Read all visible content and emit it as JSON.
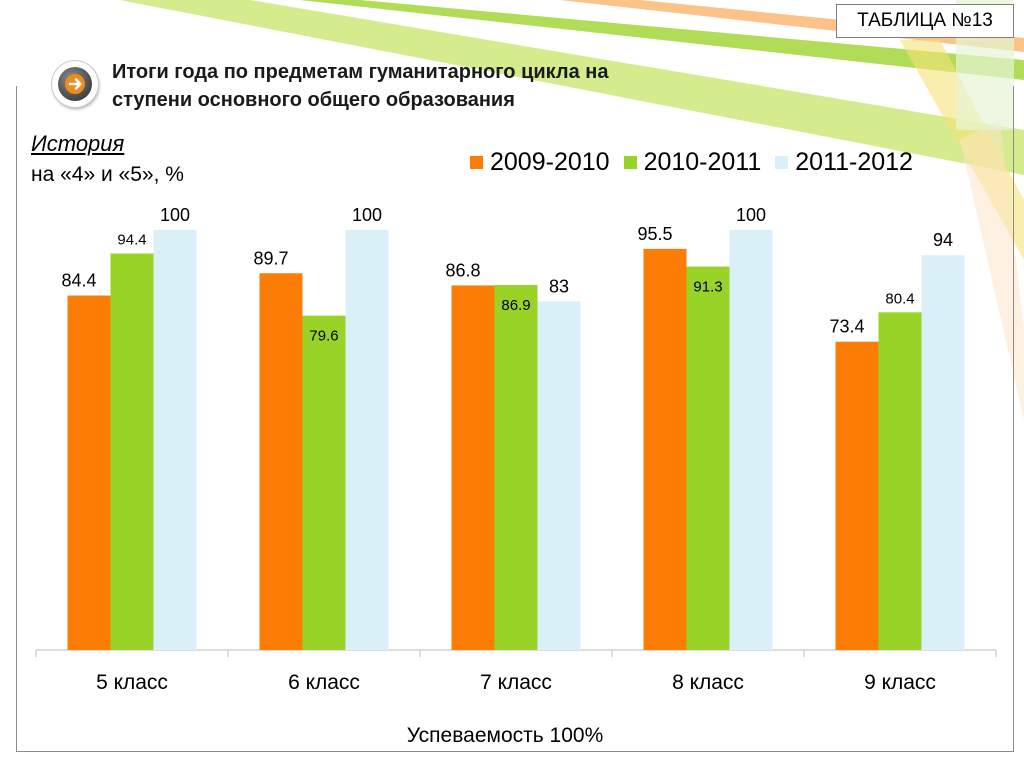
{
  "badge": "ТАБЛИЦА №13",
  "title": {
    "line1": "Итоги года по предметам гуманитарного цикла на",
    "line2": "ступени основного общего образования"
  },
  "nav_icon": "arrow-right-icon",
  "subject": "История",
  "measure": "на «4» и «5», %",
  "footnote": "Успеваемость 100%",
  "colors": {
    "s2009": "#fb7d05",
    "s2010": "#9ad327",
    "s2011": "#d9f0f9",
    "axis": "#bfbfbf",
    "frame": "#8c8c8c"
  },
  "chart_data": {
    "type": "bar",
    "categories": [
      "5 класс",
      "6 класс",
      "7 класс",
      "8 класс",
      "9 класс"
    ],
    "series": [
      {
        "name": "2009-2010",
        "values": [
          84.4,
          89.7,
          86.8,
          95.5,
          73.4
        ],
        "color": "#fb7d05"
      },
      {
        "name": "2010-2011",
        "values": [
          94.4,
          79.6,
          86.9,
          91.3,
          80.4
        ],
        "color": "#9ad327"
      },
      {
        "name": "2011-2012",
        "values": [
          100,
          100,
          83,
          100,
          94
        ],
        "color": "#d9f0f9"
      }
    ],
    "data_labels": [
      [
        "84.4",
        "89.7",
        "86.8",
        "95.5",
        "73.4"
      ],
      [
        "94.4",
        "79.6",
        "86.9",
        "91.3",
        "80.4"
      ],
      [
        "100",
        "100",
        "83",
        "100",
        "94"
      ]
    ],
    "ylim": [
      0,
      100
    ],
    "grid": false,
    "legend_position": "top-right"
  }
}
